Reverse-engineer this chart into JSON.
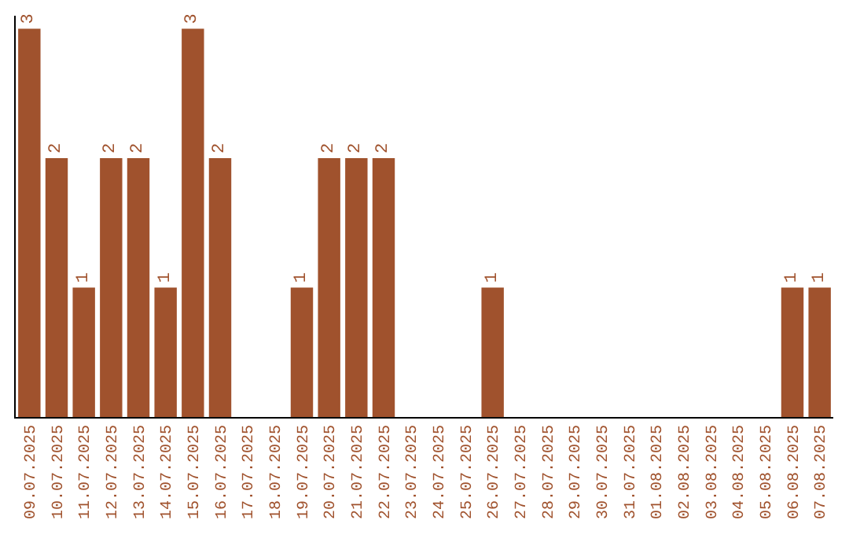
{
  "chart_data": {
    "type": "bar",
    "categories": [
      "09.07.2025",
      "10.07.2025",
      "11.07.2025",
      "12.07.2025",
      "13.07.2025",
      "14.07.2025",
      "15.07.2025",
      "16.07.2025",
      "17.07.2025",
      "18.07.2025",
      "19.07.2025",
      "20.07.2025",
      "21.07.2025",
      "22.07.2025",
      "23.07.2025",
      "24.07.2025",
      "25.07.2025",
      "26.07.2025",
      "27.07.2025",
      "28.07.2025",
      "29.07.2025",
      "30.07.2025",
      "31.07.2025",
      "01.08.2025",
      "02.08.2025",
      "03.08.2025",
      "04.08.2025",
      "05.08.2025",
      "06.08.2025",
      "07.08.2025"
    ],
    "values": [
      3,
      2,
      1,
      2,
      2,
      1,
      3,
      2,
      0,
      0,
      1,
      2,
      2,
      2,
      0,
      0,
      0,
      1,
      0,
      0,
      0,
      0,
      0,
      0,
      0,
      0,
      0,
      0,
      1,
      1
    ],
    "value_labels": [
      "3",
      "2",
      "1",
      "2",
      "2",
      "1",
      "3",
      "2",
      null,
      null,
      "1",
      "2",
      "2",
      "2",
      null,
      null,
      null,
      "1",
      null,
      null,
      null,
      null,
      null,
      null,
      null,
      null,
      null,
      null,
      "1",
      "1"
    ],
    "color": "#a0522d",
    "ylim": [
      0,
      3.1
    ],
    "tick_labels": "x",
    "grid": false,
    "legend": false
  }
}
